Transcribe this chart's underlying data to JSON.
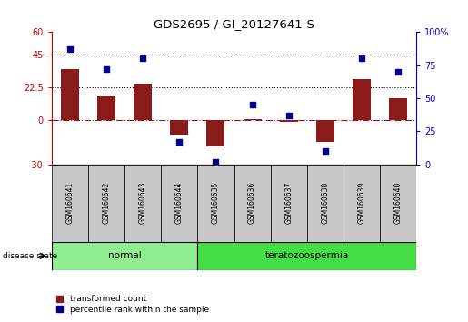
{
  "title": "GDS2695 / GI_20127641-S",
  "samples": [
    "GSM160641",
    "GSM160642",
    "GSM160643",
    "GSM160644",
    "GSM160635",
    "GSM160636",
    "GSM160637",
    "GSM160638",
    "GSM160639",
    "GSM160640"
  ],
  "transformed_count": [
    35,
    17,
    25,
    -10,
    -18,
    1,
    -1,
    -15,
    28,
    15
  ],
  "percentile_rank": [
    87,
    72,
    80,
    17,
    2,
    45,
    37,
    10,
    80,
    70
  ],
  "left_ylim": [
    -30,
    60
  ],
  "right_ylim": [
    0,
    100
  ],
  "left_yticks": [
    -30,
    0,
    22.5,
    45,
    60
  ],
  "left_yticklabels": [
    "-30",
    "0",
    "22.5",
    "45",
    "60"
  ],
  "right_yticks": [
    0,
    25,
    50,
    75,
    100
  ],
  "right_yticklabels": [
    "0",
    "25",
    "50",
    "75",
    "100%"
  ],
  "bar_color": "#8B1A1A",
  "dot_color": "#00008B",
  "hline_y_left": [
    22.5,
    45
  ],
  "zero_line_color": "#8B1A1A",
  "groups": [
    {
      "label": "normal",
      "start": 0,
      "end": 4,
      "color": "#90EE90"
    },
    {
      "label": "teratozoospermia",
      "start": 4,
      "end": 10,
      "color": "#44DD44"
    }
  ],
  "sample_box_color": "#C8C8C8",
  "disease_state_label": "disease state",
  "legend_items": [
    {
      "label": "transformed count",
      "color": "#8B1A1A"
    },
    {
      "label": "percentile rank within the sample",
      "color": "#00008B"
    }
  ],
  "background_color": "#ffffff",
  "tick_color_left": "#CC0000",
  "tick_color_right": "#0000CC",
  "bar_width": 0.5
}
